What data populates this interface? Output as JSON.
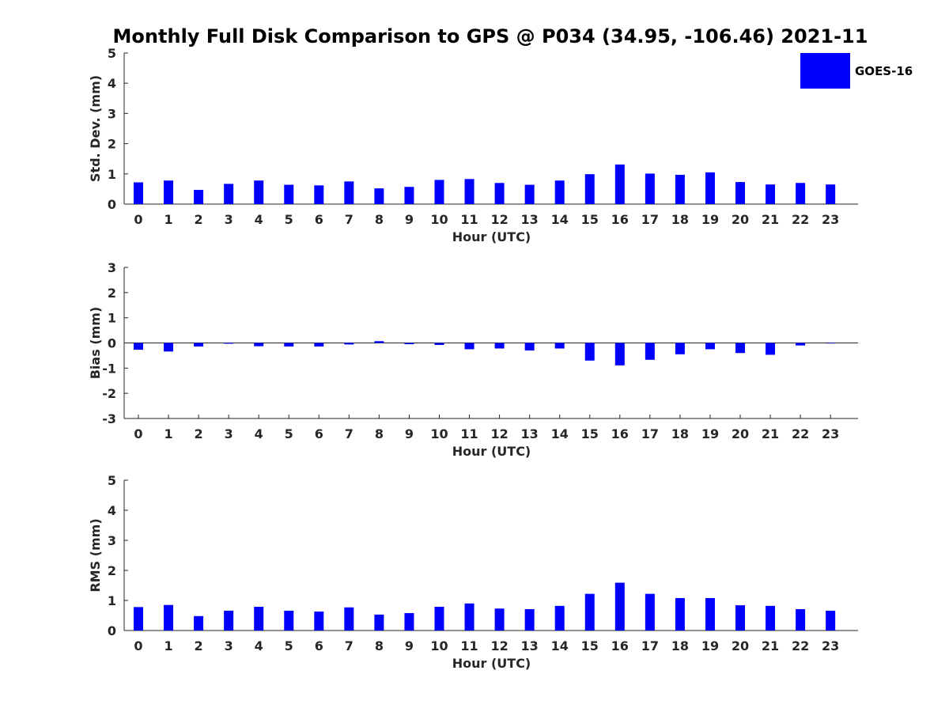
{
  "figure_title": "Monthly Full Disk Comparison to GPS @ P034 (34.95, -106.46) 2021-11",
  "legend": {
    "label": "GOES-16",
    "color": "#0000ff"
  },
  "chart_data": [
    {
      "type": "bar",
      "name": "std-dev",
      "xlabel": "Hour (UTC)",
      "ylabel": "Std. Dev. (mm)",
      "ylim": [
        0,
        5
      ],
      "yticks": [
        "0",
        "1",
        "2",
        "3",
        "4",
        "5"
      ],
      "categories": [
        "0",
        "1",
        "2",
        "3",
        "4",
        "5",
        "6",
        "7",
        "8",
        "9",
        "10",
        "11",
        "12",
        "13",
        "14",
        "15",
        "16",
        "17",
        "18",
        "19",
        "20",
        "21",
        "22",
        "23"
      ],
      "series": [
        {
          "name": "GOES-16",
          "values": [
            0.72,
            0.78,
            0.47,
            0.67,
            0.78,
            0.64,
            0.62,
            0.75,
            0.52,
            0.57,
            0.8,
            0.83,
            0.7,
            0.64,
            0.78,
            0.99,
            1.31,
            1.01,
            0.97,
            1.05,
            0.73,
            0.65,
            0.7,
            0.65
          ]
        }
      ]
    },
    {
      "type": "bar",
      "name": "bias",
      "xlabel": "Hour (UTC)",
      "ylabel": "Bias (mm)",
      "ylim": [
        -3,
        3
      ],
      "yticks": [
        "-3",
        "-2",
        "-1",
        "0",
        "1",
        "2",
        "3"
      ],
      "categories": [
        "0",
        "1",
        "2",
        "3",
        "4",
        "5",
        "6",
        "7",
        "8",
        "9",
        "10",
        "11",
        "12",
        "13",
        "14",
        "15",
        "16",
        "17",
        "18",
        "19",
        "20",
        "21",
        "22",
        "23"
      ],
      "series": [
        {
          "name": "GOES-16",
          "values": [
            -0.27,
            -0.34,
            -0.14,
            -0.03,
            -0.13,
            -0.14,
            -0.14,
            -0.06,
            0.07,
            -0.05,
            -0.08,
            -0.25,
            -0.22,
            -0.3,
            -0.22,
            -0.7,
            -0.89,
            -0.67,
            -0.45,
            -0.25,
            -0.4,
            -0.47,
            -0.1,
            -0.02
          ]
        }
      ]
    },
    {
      "type": "bar",
      "name": "rms",
      "xlabel": "Hour (UTC)",
      "ylabel": "RMS (mm)",
      "ylim": [
        0,
        5
      ],
      "yticks": [
        "0",
        "1",
        "2",
        "3",
        "4",
        "5"
      ],
      "categories": [
        "0",
        "1",
        "2",
        "3",
        "4",
        "5",
        "6",
        "7",
        "8",
        "9",
        "10",
        "11",
        "12",
        "13",
        "14",
        "15",
        "16",
        "17",
        "18",
        "19",
        "20",
        "21",
        "22",
        "23"
      ],
      "series": [
        {
          "name": "GOES-16",
          "values": [
            0.78,
            0.85,
            0.48,
            0.66,
            0.79,
            0.66,
            0.63,
            0.77,
            0.53,
            0.58,
            0.79,
            0.9,
            0.73,
            0.71,
            0.82,
            1.22,
            1.59,
            1.22,
            1.08,
            1.08,
            0.84,
            0.82,
            0.71,
            0.66
          ]
        }
      ]
    }
  ]
}
